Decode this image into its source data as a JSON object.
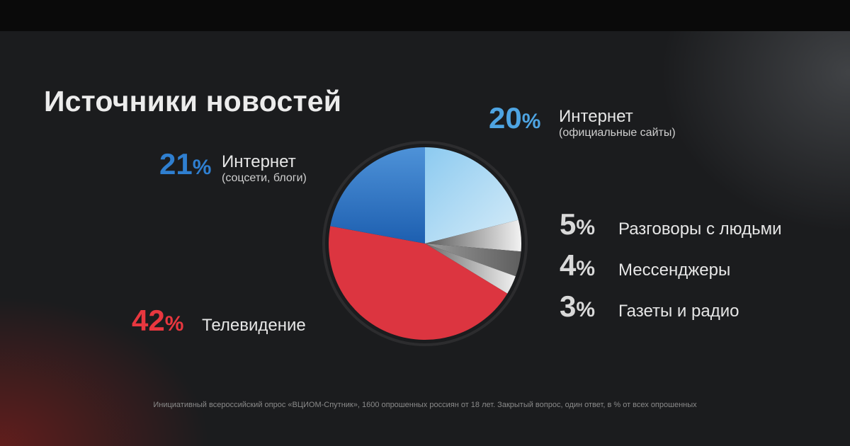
{
  "title": "Источники новостей",
  "footnote": "Инициативный всероссийский опрос «ВЦИОМ-Спутник», 1600 опрошенных россиян от 18 лет. Закрытый вопрос, один ответ, в % от всех опрошенных",
  "colors": {
    "internet_official": "#a8d8f2",
    "internet_social": "#2a72c4",
    "tv": "#dc3540",
    "gray": "#d8d8d8",
    "pct_blue": "#4ea4e2",
    "pct_red": "#e8373f",
    "pct_gray": "#d9d9d9"
  },
  "chart_data": {
    "type": "pie",
    "title": "Источники новостей",
    "slices": [
      {
        "label": "Интернет",
        "sublabel": "(официальные сайты)",
        "value": 20,
        "value_label": "20",
        "color": "#a8d8f2"
      },
      {
        "label": "Разговоры с людьми",
        "value": 5,
        "value_label": "5",
        "color": "#ededed"
      },
      {
        "label": "Мессенджеры",
        "value": 4,
        "value_label": "4",
        "color": "#b9b9b9"
      },
      {
        "label": "Газеты и радио",
        "value": 3,
        "value_label": "3",
        "color": "#e2e2e2"
      },
      {
        "label": "Телевидение",
        "value": 42,
        "value_label": "42",
        "color": "#dc3540"
      },
      {
        "label": "Интернет",
        "sublabel": "(соцсети, блоги)",
        "value": 21,
        "value_label": "21",
        "color": "#2a72c4"
      }
    ],
    "start_angle_deg": 0,
    "direction": "clockwise",
    "percent_sign": "%"
  }
}
